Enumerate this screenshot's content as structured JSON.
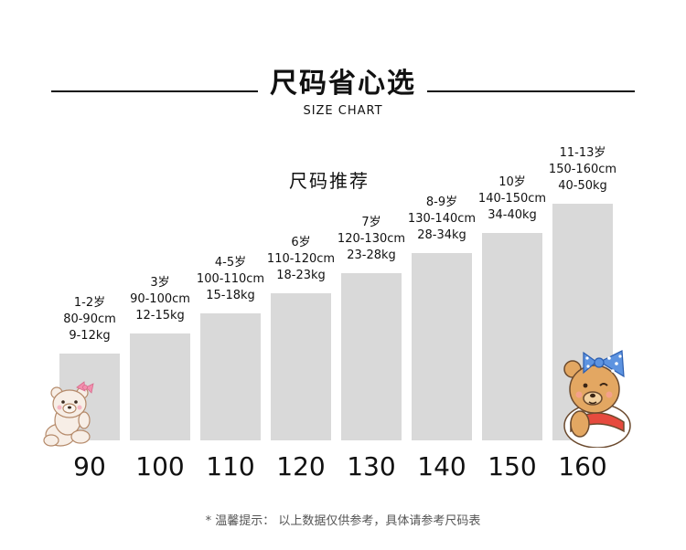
{
  "header": {
    "title": "尺码省心选",
    "subtitle": "SIZE CHART"
  },
  "chart": {
    "heading": "尺码推荐"
  },
  "sizes": [
    {
      "label": "90",
      "age": "1-2岁",
      "height": "80-90cm",
      "weight": "9-12kg"
    },
    {
      "label": "100",
      "age": "3岁",
      "height": "90-100cm",
      "weight": "12-15kg"
    },
    {
      "label": "110",
      "age": "4-5岁",
      "height": "100-110cm",
      "weight": "15-18kg"
    },
    {
      "label": "120",
      "age": "6岁",
      "height": "110-120cm",
      "weight": "18-23kg"
    },
    {
      "label": "130",
      "age": "7岁",
      "height": "120-130cm",
      "weight": "23-28kg"
    },
    {
      "label": "140",
      "age": "8-9岁",
      "height": "130-140cm",
      "weight": "28-34kg"
    },
    {
      "label": "150",
      "age": "10岁",
      "height": "140-150cm",
      "weight": "34-40kg"
    },
    {
      "label": "160",
      "age": "11-13岁",
      "height": "150-160cm",
      "weight": "40-50kg"
    }
  ],
  "footnote": "* 温馨提示：  以上数据仅供参考，具体请参考尺码表",
  "colors": {
    "bar": "#d9d9d9",
    "text": "#111111",
    "note": "#555555"
  },
  "icons": {
    "left": "bear-with-pink-bow-icon",
    "right": "bear-with-blue-bow-icon"
  }
}
